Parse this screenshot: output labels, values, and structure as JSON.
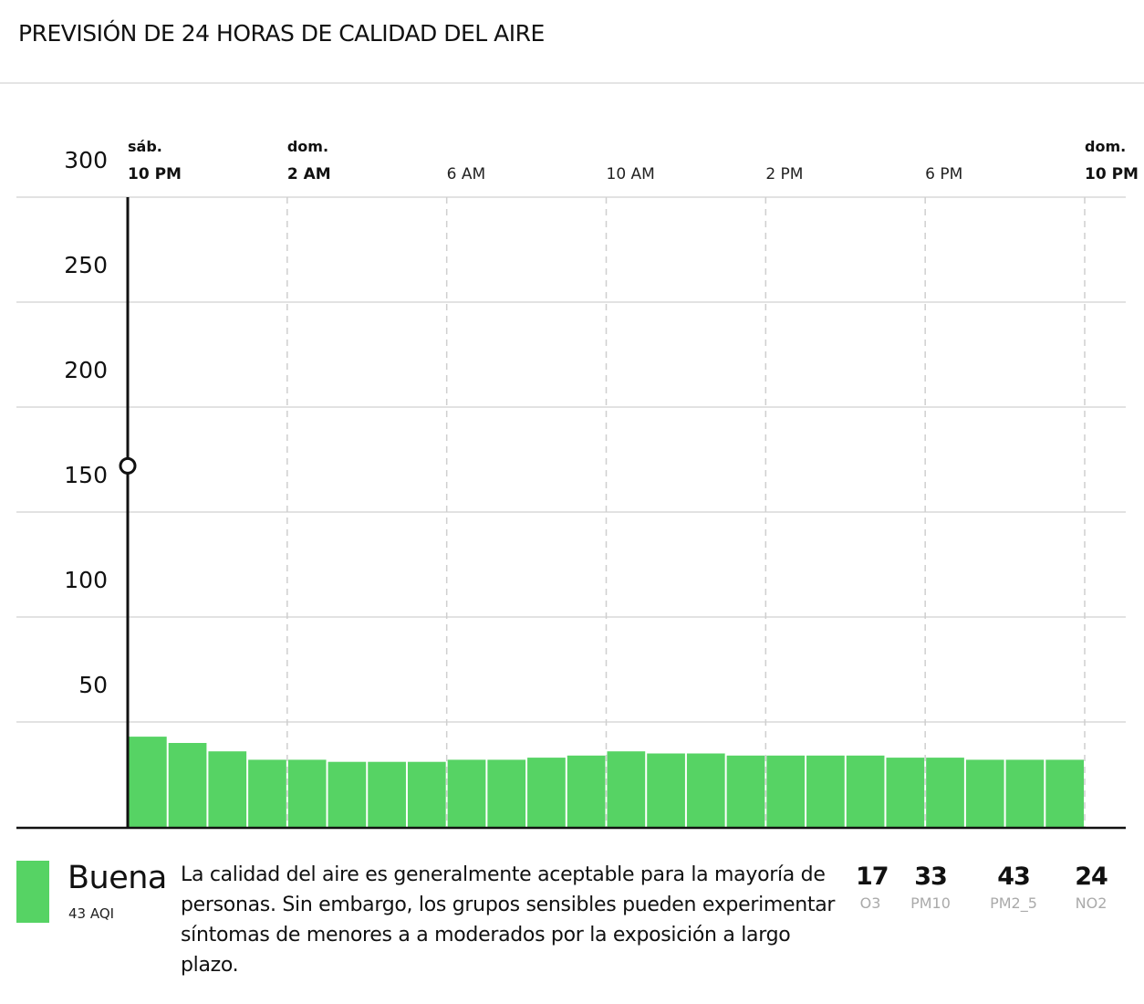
{
  "header": {
    "title": "PREVISIÓN DE 24 HORAS DE CALIDAD DEL AIRE"
  },
  "chart_data": {
    "type": "bar",
    "title": "PREVISIÓN DE 24 HORAS DE CALIDAD DEL AIRE",
    "xlabel": "",
    "ylabel": "",
    "ylim": [
      0,
      300
    ],
    "y_ticks": [
      "50",
      "100",
      "150",
      "200",
      "250",
      "300"
    ],
    "x_ticks": [
      {
        "hour": 0,
        "day": "sáb.",
        "label": "10 PM",
        "bold": true
      },
      {
        "hour": 4,
        "day": "dom.",
        "label": "2 AM",
        "bold": true
      },
      {
        "hour": 8,
        "day": "",
        "label": "6 AM",
        "bold": false
      },
      {
        "hour": 12,
        "day": "",
        "label": "10 AM",
        "bold": false
      },
      {
        "hour": 16,
        "day": "",
        "label": "2 PM",
        "bold": false
      },
      {
        "hour": 20,
        "day": "",
        "label": "6 PM",
        "bold": false
      },
      {
        "hour": 24,
        "day": "dom.",
        "label": "10 PM",
        "bold": true
      }
    ],
    "values": [
      43,
      40,
      36,
      32,
      32,
      31,
      31,
      31,
      32,
      32,
      33,
      34,
      36,
      35,
      35,
      34,
      34,
      34,
      34,
      33,
      33,
      32,
      32,
      32
    ],
    "bar_color": "#56d364",
    "cursor": {
      "hour": 0,
      "value": 172
    },
    "grid": true
  },
  "legend": {
    "category": "Buena",
    "aqi": "43 AQI",
    "color": "#56d364",
    "description": "La calidad del aire es generalmente aceptable para la mayoría de personas. Sin embargo, los grupos sensibles pueden experimentar síntomas de menores a a moderados por la exposición a largo plazo."
  },
  "pollutants": [
    {
      "value": "17",
      "name": "O3"
    },
    {
      "value": "33",
      "name": "PM10"
    },
    {
      "value": "43",
      "name": "PM2_5"
    },
    {
      "value": "24",
      "name": "NO2"
    }
  ]
}
